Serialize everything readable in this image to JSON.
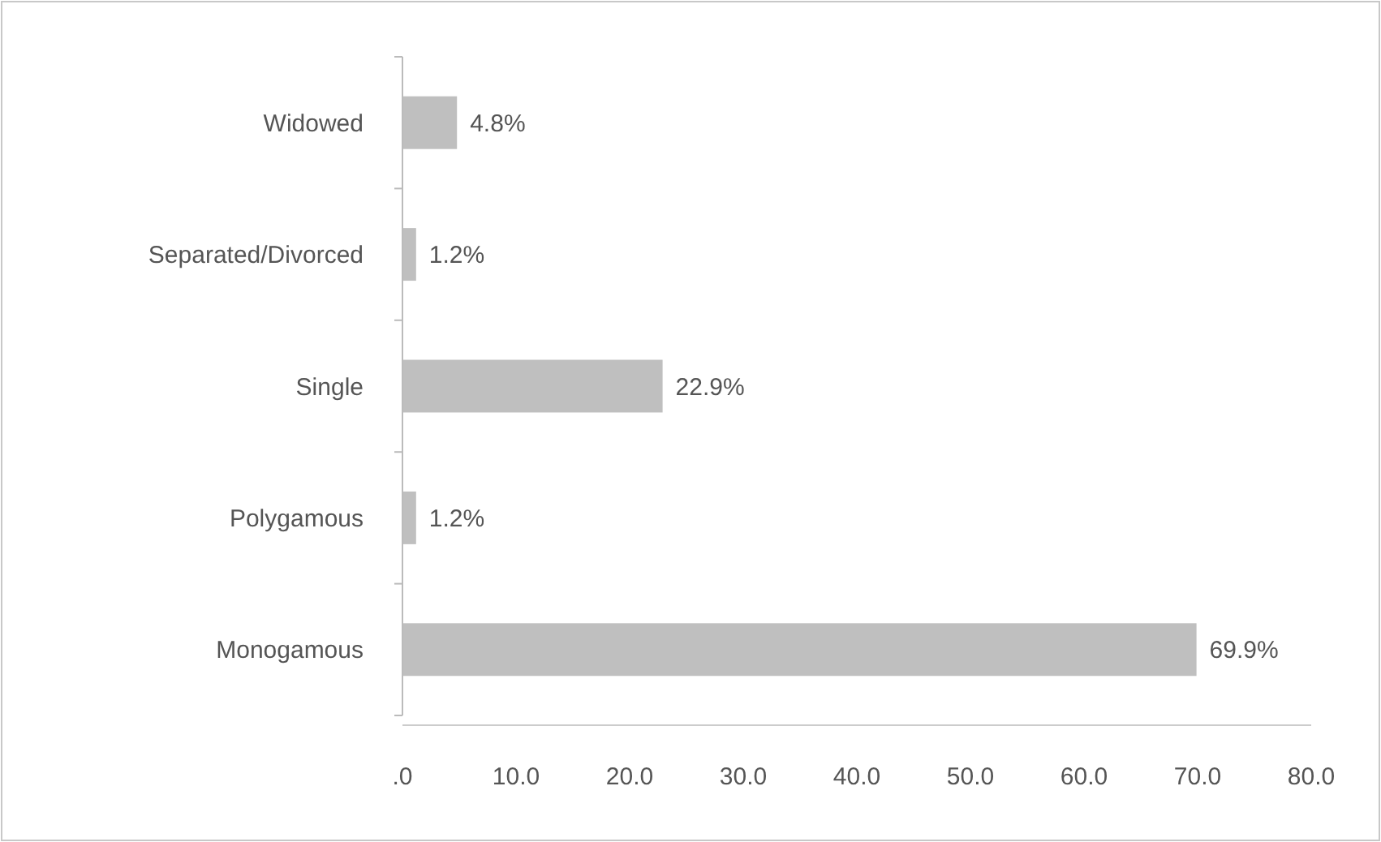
{
  "chart_data": {
    "type": "bar",
    "orientation": "horizontal",
    "categories": [
      "Widowed",
      "Separated/Divorced",
      "Single",
      "Polygamous",
      "Monogamous"
    ],
    "values": [
      4.8,
      1.2,
      22.9,
      1.2,
      69.9
    ],
    "value_labels": [
      "4.8%",
      "1.2%",
      "22.9%",
      "1.2%",
      "69.9%"
    ],
    "color": "#bfbfbf",
    "xlim": [
      0,
      80
    ],
    "xticks": [
      {
        "value": 0,
        "label": ".0"
      },
      {
        "value": 10,
        "label": "10.0"
      },
      {
        "value": 20,
        "label": "20.0"
      },
      {
        "value": 30,
        "label": "30.0"
      },
      {
        "value": 40,
        "label": "40.0"
      },
      {
        "value": 50,
        "label": "50.0"
      },
      {
        "value": 60,
        "label": "60.0"
      },
      {
        "value": 70,
        "label": "70.0"
      },
      {
        "value": 80,
        "label": "80.0"
      }
    ],
    "grid": false
  }
}
